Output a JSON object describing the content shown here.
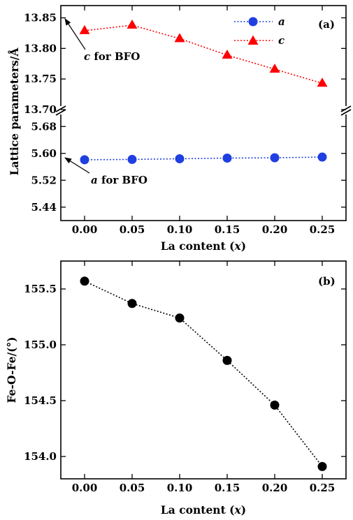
{
  "chart_data": [
    {
      "type": "line",
      "panel_label": "(a)",
      "x": [
        0.0,
        0.05,
        0.1,
        0.15,
        0.2,
        0.25
      ],
      "x_tick_labels": [
        "0.00",
        "0.05",
        "0.10",
        "0.15",
        "0.20",
        "0.25"
      ],
      "xlim": [
        -0.025,
        0.275
      ],
      "xlabel": {
        "text": "La content (",
        "var": "x",
        "close": ")"
      },
      "ylabel": "Lattice parameters/Å",
      "y_axis_break": true,
      "upper_ylim": [
        13.7,
        13.87
      ],
      "upper_y_tick_labels": [
        "13.70",
        "13.75",
        "13.80",
        "13.85"
      ],
      "lower_ylim": [
        5.4,
        5.72
      ],
      "lower_y_tick_labels": [
        "5.44",
        "5.52",
        "5.60",
        "5.68"
      ],
      "series": [
        {
          "name": "a",
          "color": "#1f3fe0",
          "marker": "circle",
          "line": "dotted",
          "values": [
            5.581,
            5.582,
            5.584,
            5.586,
            5.587,
            5.589
          ]
        },
        {
          "name": "c",
          "color": "#ff0000",
          "marker": "triangle",
          "line": "dotted",
          "values": [
            13.829,
            13.838,
            13.816,
            13.789,
            13.766,
            13.743
          ]
        }
      ],
      "annotations": [
        {
          "var": "c",
          "text": " for BFO"
        },
        {
          "var": "a",
          "text": " for BFO"
        }
      ],
      "legend_position": "top-right",
      "grid": false
    },
    {
      "type": "line",
      "panel_label": "(b)",
      "x": [
        0.0,
        0.05,
        0.1,
        0.15,
        0.2,
        0.25
      ],
      "x_tick_labels": [
        "0.00",
        "0.05",
        "0.10",
        "0.15",
        "0.20",
        "0.25"
      ],
      "xlim": [
        -0.025,
        0.275
      ],
      "xlabel": {
        "text": "La content (",
        "var": "x",
        "close": ")"
      },
      "ylabel": "Fe-O-Fe/(°)",
      "ylim": [
        153.8,
        155.75
      ],
      "y_tick_labels": [
        "154.0",
        "154.5",
        "155.0",
        "155.5"
      ],
      "series": [
        {
          "color": "#000000",
          "marker": "circle",
          "line": "dotted",
          "values": [
            155.57,
            155.37,
            155.24,
            154.86,
            154.46,
            153.91
          ]
        }
      ],
      "grid": false
    }
  ]
}
